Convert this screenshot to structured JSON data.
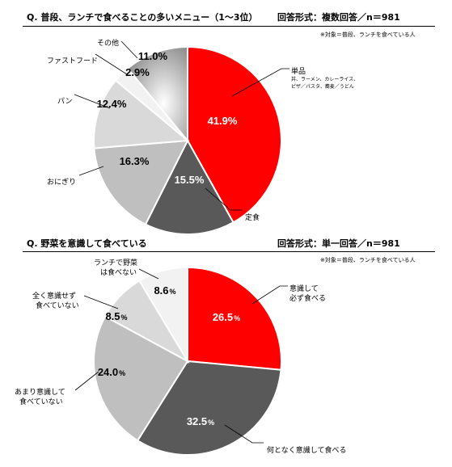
{
  "chart_data": [
    {
      "type": "pie",
      "title": "Q. 普段、ランチで食べることの多いメニュー（1〜3位）",
      "response_format": "回答形式：複数回答／n＝981",
      "note": "※対象＝普段、ランチを食べている人",
      "slices": [
        {
          "label": "単品",
          "sublabel": "丼、ラーメン、カレーライス、",
          "sublabel2": "ピザ／パスタ、蕎麦／うどん",
          "value": 41.9,
          "value_text": "41.9%",
          "color": "#ff0000",
          "text_color": "#ffffff"
        },
        {
          "label": "定食",
          "value": 15.5,
          "value_text": "15.5%",
          "color": "#595959",
          "text_color": "#ffffff"
        },
        {
          "label": "おにぎり",
          "value": 16.3,
          "value_text": "16.3%",
          "color": "#bfbfbf",
          "text_color": "#000000"
        },
        {
          "label": "パン",
          "value": 12.4,
          "value_text": "12.4%",
          "color": "#d9d9d9",
          "text_color": "#000000"
        },
        {
          "label": "ファストフード",
          "value": 2.9,
          "value_text": "2.9%",
          "color": "#f2f2f2",
          "text_color": "#000000"
        },
        {
          "label": "その他",
          "value": 11.0,
          "value_text": "11.0%",
          "color": "#a6a6a6",
          "text_color": "#000000"
        }
      ]
    },
    {
      "type": "pie",
      "title": "Q. 野菜を意識して食べている",
      "response_format": "回答形式：単一回答／n＝981",
      "note": "※対象＝普段、ランチを食べている人",
      "slices": [
        {
          "label": "意識して",
          "label2": "必ず食べる",
          "value": 26.5,
          "value_text": "26.5",
          "unit": "%",
          "color": "#ff0000",
          "text_color": "#ffffff"
        },
        {
          "label": "何となく意識して食べる",
          "value": 32.5,
          "value_text": "32.5",
          "unit": "%",
          "color": "#595959",
          "text_color": "#ffffff"
        },
        {
          "label": "あまり意識して",
          "label2": "食べていない",
          "value": 24.0,
          "value_text": "24.0",
          "unit": "%",
          "color": "#bfbfbf",
          "text_color": "#000000"
        },
        {
          "label": "全く意識せず",
          "label2": "食べていない",
          "value": 8.5,
          "value_text": "8.5",
          "unit": "%",
          "color": "#d9d9d9",
          "text_color": "#000000"
        },
        {
          "label": "ランチで野菜",
          "label2": "は食べない",
          "value": 8.6,
          "value_text": "8.6",
          "unit": "%",
          "color": "#f2f2f2",
          "text_color": "#000000"
        }
      ]
    }
  ]
}
